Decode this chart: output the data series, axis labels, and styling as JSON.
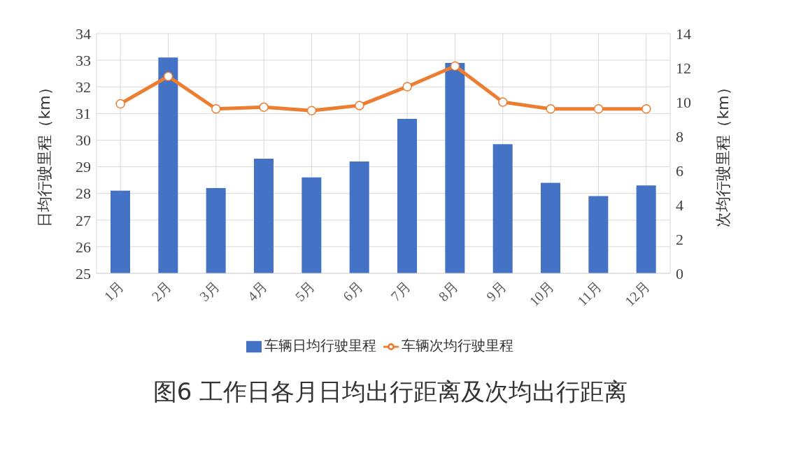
{
  "chart_data": {
    "type": "bar",
    "title": "图6 工作日各月日均出行距离及次均出行距离",
    "categories": [
      "1月",
      "2月",
      "3月",
      "4月",
      "5月",
      "6月",
      "7月",
      "8月",
      "9月",
      "10月",
      "11月",
      "12月"
    ],
    "series": [
      {
        "name": "车辆日均行驶里程",
        "color": "#4472c4",
        "values": [
          28.1,
          33.1,
          28.2,
          29.3,
          28.6,
          29.2,
          30.8,
          32.9,
          29.85,
          28.4,
          27.9,
          28.3
        ]
      },
      {
        "name": "车辆次均行驶里程",
        "type": "line",
        "axis": "y2",
        "color": "#ed7d31",
        "values": [
          9.9,
          11.5,
          9.6,
          9.7,
          9.5,
          9.8,
          10.9,
          12.1,
          10.0,
          9.6,
          9.6,
          9.6
        ]
      }
    ],
    "ylabel": "日均行驶里程（km）",
    "y2label": "次均行驶里程（km）",
    "ylim": [
      25,
      34
    ],
    "yticks": [
      25,
      26,
      27,
      28,
      29,
      30,
      31,
      32,
      33,
      34
    ],
    "y2lim": [
      0,
      14
    ],
    "y2ticks": [
      0,
      2,
      4,
      6,
      8,
      10,
      12,
      14
    ],
    "grid": true,
    "legend": "bottom",
    "marker": "circle",
    "line_style": "solid"
  }
}
